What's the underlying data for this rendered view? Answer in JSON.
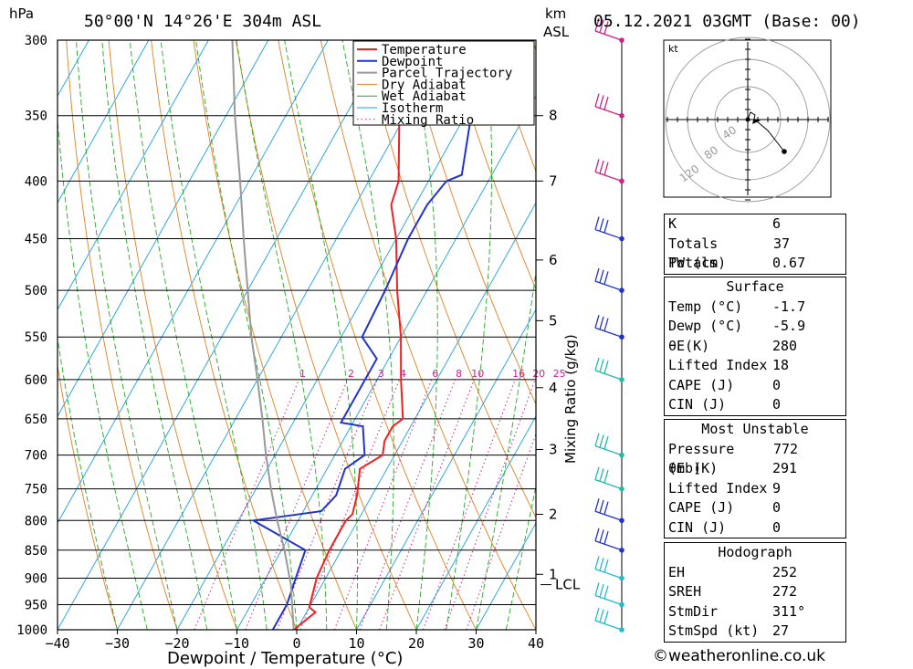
{
  "header": {
    "location": "50°00'N  14°26'E  304m  ASL",
    "hpa_unit": "hPa",
    "km_unit": "km",
    "asl_unit": "ASL",
    "datetime": "05.12.2021  03GMT  (Base: 00)"
  },
  "legend": [
    "Temperature",
    "Dewpoint",
    "Parcel Trajectory",
    "Dry Adiabat",
    "Wet Adiabat",
    "Isotherm",
    "Mixing Ratio"
  ],
  "colors": {
    "temperature": "#ee2222",
    "dewpoint": "#2233cc",
    "parcel": "#999999",
    "dry_adiabat": "#e08020",
    "wet_adiabat": "#22aa22",
    "isotherm": "#1aa0e0",
    "mixing_ratio": "#cc2288"
  },
  "chart_data": {
    "type": "line",
    "title": "50°00'N  14°26'E  304m  ASL",
    "xlabel": "Dewpoint / Temperature (°C)",
    "ylabel": "hPa",
    "xlim": [
      -40,
      40
    ],
    "xticks": [
      "−40",
      "−30",
      "−20",
      "−10",
      "0",
      "10",
      "20",
      "30",
      "40"
    ],
    "pressure_levels": [
      300,
      350,
      400,
      450,
      500,
      550,
      600,
      650,
      700,
      750,
      800,
      850,
      900,
      950,
      1000
    ],
    "pressure_range": [
      300,
      1000
    ],
    "height_km_axis": {
      "label": "km ASL",
      "ticks": [
        {
          "km": "8",
          "p": 350
        },
        {
          "km": "7",
          "p": 400
        },
        {
          "km": "6",
          "p": 470
        },
        {
          "km": "5",
          "p": 532
        },
        {
          "km": "4",
          "p": 610
        },
        {
          "km": "3",
          "p": 692
        },
        {
          "km": "2",
          "p": 790
        },
        {
          "km": "1",
          "p": 893
        }
      ],
      "lcl_label": "LCL",
      "lcl_p": 912
    },
    "mixing_ratio_label": "Mixing Ratio (g/kg)",
    "mixing_ratio_values": [
      "1",
      "2",
      "3",
      "4",
      "6",
      "8",
      "10",
      "16",
      "20",
      "25"
    ],
    "series": [
      {
        "name": "Temperature",
        "points": [
          [
            1000,
            -0.5
          ],
          [
            965,
            1.5
          ],
          [
            955,
            0
          ],
          [
            900,
            -1.5
          ],
          [
            850,
            -2
          ],
          [
            800,
            -2
          ],
          [
            790,
            -1.5
          ],
          [
            760,
            -2.5
          ],
          [
            720,
            -4.5
          ],
          [
            700,
            -2
          ],
          [
            680,
            -3
          ],
          [
            660,
            -3
          ],
          [
            650,
            -2
          ],
          [
            600,
            -6
          ],
          [
            550,
            -10
          ],
          [
            500,
            -15
          ],
          [
            450,
            -20
          ],
          [
            420,
            -24
          ],
          [
            400,
            -25
          ],
          [
            350,
            -31
          ],
          [
            300,
            -40
          ]
        ]
      },
      {
        "name": "Dewpoint",
        "points": [
          [
            1000,
            -4
          ],
          [
            950,
            -4
          ],
          [
            900,
            -5
          ],
          [
            850,
            -6
          ],
          [
            800,
            -17.5
          ],
          [
            785,
            -7
          ],
          [
            760,
            -6
          ],
          [
            720,
            -7
          ],
          [
            700,
            -5
          ],
          [
            660,
            -8
          ],
          [
            655,
            -12
          ],
          [
            600,
            -12
          ],
          [
            575,
            -12
          ],
          [
            550,
            -16.5
          ],
          [
            500,
            -17
          ],
          [
            450,
            -18
          ],
          [
            420,
            -18
          ],
          [
            400,
            -17
          ],
          [
            395,
            -15
          ],
          [
            350,
            -19
          ],
          [
            300,
            -29
          ]
        ]
      },
      {
        "name": "Parcel Trajectory",
        "points": [
          [
            1000,
            -0.5
          ],
          [
            912,
            -5.2
          ],
          [
            850,
            -9.5
          ],
          [
            800,
            -13.5
          ],
          [
            750,
            -17.5
          ],
          [
            700,
            -21.5
          ],
          [
            650,
            -25.5
          ],
          [
            600,
            -30
          ],
          [
            550,
            -35
          ],
          [
            500,
            -40
          ],
          [
            450,
            -45.5
          ],
          [
            400,
            -51.5
          ],
          [
            350,
            -58.5
          ],
          [
            300,
            -66
          ]
        ]
      }
    ],
    "wind_barb_levels": [
      300,
      350,
      400,
      450,
      500,
      550,
      600,
      700,
      750,
      800,
      850,
      900,
      950,
      1000
    ],
    "hodograph": {
      "unit": "kt",
      "ring_labels": [
        "40",
        "80",
        "120"
      ],
      "points": [
        [
          0,
          0
        ],
        [
          3,
          8
        ],
        [
          8,
          5
        ],
        [
          6,
          -3
        ],
        [
          10,
          -2
        ],
        [
          22,
          -12
        ],
        [
          40,
          -35
        ]
      ],
      "storm_motion": [
        6,
        -3
      ]
    }
  },
  "indices": [
    {
      "label": "K",
      "value": "6"
    },
    {
      "label": "Totals Totals",
      "value": "37"
    },
    {
      "label": "PW (cm)",
      "value": "0.67"
    }
  ],
  "surface": {
    "title": "Surface",
    "rows": [
      {
        "label": "Temp (°C)",
        "value": "-1.7"
      },
      {
        "label": "Dewp (°C)",
        "value": "-5.9"
      },
      {
        "label": "θE(K)",
        "value": "280"
      },
      {
        "label": "Lifted Index",
        "value": "18"
      },
      {
        "label": "CAPE (J)",
        "value": "0"
      },
      {
        "label": "CIN (J)",
        "value": "0"
      }
    ]
  },
  "most_unstable": {
    "title": "Most Unstable",
    "rows": [
      {
        "label": "Pressure (mb)",
        "value": "772"
      },
      {
        "label": "θE (K)",
        "value": "291"
      },
      {
        "label": "Lifted Index",
        "value": "9"
      },
      {
        "label": "CAPE (J)",
        "value": "0"
      },
      {
        "label": "CIN (J)",
        "value": "0"
      }
    ]
  },
  "hodograph_table": {
    "title": "Hodograph",
    "rows": [
      {
        "label": "EH",
        "value": "252"
      },
      {
        "label": "SREH",
        "value": "272"
      },
      {
        "label": "StmDir",
        "value": "311°"
      },
      {
        "label": "StmSpd (kt)",
        "value": "27"
      }
    ]
  },
  "credit": "©weatheronline.co.uk"
}
